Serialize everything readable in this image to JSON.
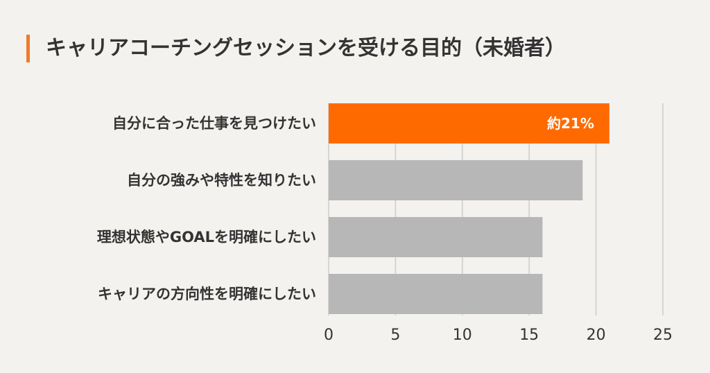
{
  "chart_data": {
    "type": "bar",
    "orientation": "horizontal",
    "title": "キャリアコーチングセッションを受ける目的（未婚者）",
    "categories": [
      "自分に合った仕事を見つけたい",
      "自分の強みや特性を知りたい",
      "理想状態やGOALを明確にしたい",
      "キャリアの方向性を明確にしたい"
    ],
    "values": [
      21,
      19,
      16,
      16
    ],
    "data_labels": [
      "約21%",
      "",
      "",
      ""
    ],
    "xlim": [
      0,
      25
    ],
    "xticks": [
      "0",
      "5",
      "10",
      "15",
      "20",
      "25"
    ],
    "xlabel": "",
    "ylabel": "",
    "grid": true,
    "colors": {
      "highlight": "#ff6a00",
      "bar": "#b7b7b7",
      "accent": "#f07a2a",
      "grid": "#cccccc"
    }
  }
}
